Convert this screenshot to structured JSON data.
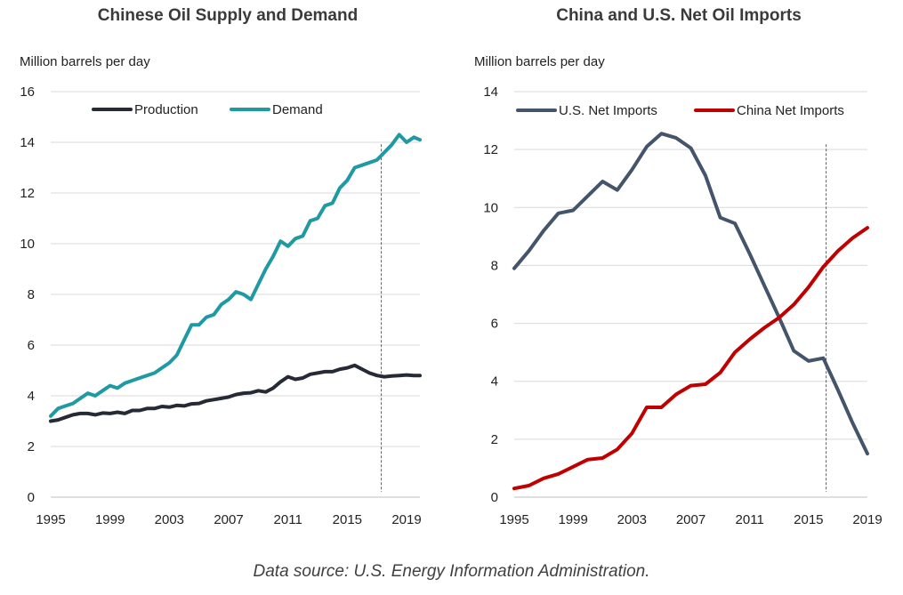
{
  "source_note": "Data source: U.S. Energy Information Administration.",
  "chart_data": [
    {
      "type": "line",
      "title": "Chinese Oil Supply and Demand",
      "ylabel": "Million barrels per day",
      "xlim": [
        1995,
        2019.9
      ],
      "ylim": [
        0,
        16
      ],
      "yticks": [
        0,
        2,
        4,
        6,
        8,
        10,
        12,
        14,
        16
      ],
      "xticks": [
        1995,
        1999,
        2003,
        2007,
        2011,
        2015,
        2019
      ],
      "grid": true,
      "legend": "top",
      "vline_x": 2017.3,
      "series": [
        {
          "name": "Production",
          "color": "#262a36",
          "x": [
            1995,
            1995.5,
            1996,
            1996.5,
            1997,
            1997.5,
            1998,
            1998.5,
            1999,
            1999.5,
            2000,
            2000.5,
            2001,
            2001.5,
            2002,
            2002.5,
            2003,
            2003.5,
            2004,
            2004.5,
            2005,
            2005.5,
            2006,
            2006.5,
            2007,
            2007.5,
            2008,
            2008.5,
            2009,
            2009.5,
            2010,
            2010.5,
            2011,
            2011.5,
            2012,
            2012.5,
            2013,
            2013.5,
            2014,
            2014.5,
            2015,
            2015.5,
            2016,
            2016.5,
            2017,
            2017.5,
            2018,
            2018.5,
            2019,
            2019.5,
            2019.9
          ],
          "values": [
            3.0,
            3.05,
            3.15,
            3.25,
            3.3,
            3.3,
            3.25,
            3.32,
            3.3,
            3.35,
            3.3,
            3.42,
            3.42,
            3.5,
            3.5,
            3.58,
            3.55,
            3.62,
            3.6,
            3.68,
            3.7,
            3.8,
            3.85,
            3.9,
            3.95,
            4.05,
            4.1,
            4.12,
            4.2,
            4.15,
            4.3,
            4.55,
            4.75,
            4.65,
            4.7,
            4.85,
            4.9,
            4.95,
            4.95,
            5.05,
            5.1,
            5.2,
            5.05,
            4.9,
            4.8,
            4.75,
            4.78,
            4.8,
            4.82,
            4.8,
            4.8
          ]
        },
        {
          "name": "Demand",
          "color": "#1f9aa3",
          "x": [
            1995,
            1995.5,
            1996,
            1996.5,
            1997,
            1997.5,
            1998,
            1998.5,
            1999,
            1999.5,
            2000,
            2000.5,
            2001,
            2001.5,
            2002,
            2002.5,
            2003,
            2003.5,
            2004,
            2004.5,
            2005,
            2005.5,
            2006,
            2006.5,
            2007,
            2007.5,
            2008,
            2008.5,
            2009,
            2009.5,
            2010,
            2010.5,
            2011,
            2011.5,
            2012,
            2012.5,
            2013,
            2013.5,
            2014,
            2014.5,
            2015,
            2015.5,
            2016,
            2016.5,
            2017,
            2017.5,
            2018,
            2018.5,
            2019,
            2019.5,
            2019.9
          ],
          "values": [
            3.2,
            3.5,
            3.6,
            3.7,
            3.9,
            4.1,
            4.0,
            4.2,
            4.4,
            4.3,
            4.5,
            4.6,
            4.7,
            4.8,
            4.9,
            5.1,
            5.3,
            5.6,
            6.2,
            6.8,
            6.8,
            7.1,
            7.2,
            7.6,
            7.8,
            8.1,
            8.0,
            7.8,
            8.4,
            9.0,
            9.5,
            10.1,
            9.9,
            10.2,
            10.3,
            10.9,
            11.0,
            11.5,
            11.6,
            12.2,
            12.5,
            13.0,
            13.1,
            13.2,
            13.3,
            13.6,
            13.9,
            14.3,
            14.0,
            14.2,
            14.1
          ]
        }
      ]
    },
    {
      "type": "line",
      "title": "China and U.S. Net Oil Imports",
      "ylabel": "Million barrels per day",
      "xlim": [
        1995,
        2019
      ],
      "ylim": [
        0,
        14
      ],
      "yticks": [
        0,
        2,
        4,
        6,
        8,
        10,
        12,
        14
      ],
      "xticks": [
        1995,
        1999,
        2003,
        2007,
        2011,
        2015,
        2019
      ],
      "grid": true,
      "legend": "top",
      "vline_x": 2016.2,
      "series": [
        {
          "name": "U.S. Net Imports",
          "color": "#44546a",
          "x": [
            1995,
            1996,
            1997,
            1998,
            1999,
            2000,
            2001,
            2002,
            2003,
            2004,
            2005,
            2006,
            2007,
            2008,
            2009,
            2010,
            2011,
            2012,
            2013,
            2014,
            2015,
            2016,
            2017,
            2018,
            2019
          ],
          "values": [
            7.9,
            8.5,
            9.2,
            9.8,
            9.9,
            10.4,
            10.9,
            10.6,
            11.3,
            12.1,
            12.55,
            12.4,
            12.05,
            11.1,
            9.65,
            9.45,
            8.4,
            7.3,
            6.2,
            5.05,
            4.7,
            4.8,
            3.7,
            2.55,
            1.5
          ]
        },
        {
          "name": "China Net Imports",
          "color": "#c00000",
          "x": [
            1995,
            1996,
            1997,
            1998,
            1999,
            2000,
            2001,
            2002,
            2003,
            2004,
            2005,
            2006,
            2007,
            2008,
            2009,
            2010,
            2011,
            2012,
            2013,
            2014,
            2015,
            2016,
            2017,
            2018,
            2019
          ],
          "values": [
            0.3,
            0.4,
            0.65,
            0.8,
            1.05,
            1.3,
            1.35,
            1.65,
            2.2,
            3.1,
            3.1,
            3.55,
            3.85,
            3.9,
            4.3,
            5.0,
            5.45,
            5.85,
            6.2,
            6.65,
            7.25,
            7.95,
            8.5,
            8.95,
            9.3
          ]
        }
      ]
    }
  ]
}
